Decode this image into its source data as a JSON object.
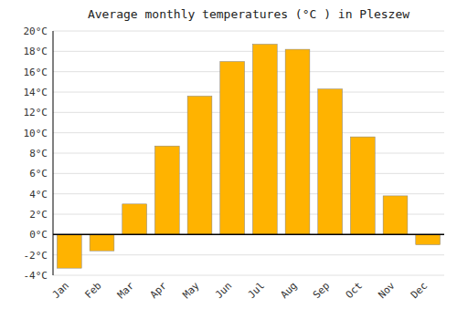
{
  "chart_data": {
    "type": "bar",
    "title": "Average monthly temperatures (°C ) in Pleszew",
    "categories": [
      "Jan",
      "Feb",
      "Mar",
      "Apr",
      "May",
      "Jun",
      "Jul",
      "Aug",
      "Sep",
      "Oct",
      "Nov",
      "Dec"
    ],
    "values": [
      -3.3,
      -1.6,
      3.0,
      8.7,
      13.6,
      17.0,
      18.7,
      18.2,
      14.3,
      9.6,
      3.8,
      -1.0
    ],
    "color": "#FFB300",
    "ylim": [
      -4,
      20
    ],
    "yticks": [
      {
        "value": -4,
        "label": "-4°C"
      },
      {
        "value": -2,
        "label": "-2°C"
      },
      {
        "value": 0,
        "label": "0°C"
      },
      {
        "value": 2,
        "label": "2°C"
      },
      {
        "value": 4,
        "label": "4°C"
      },
      {
        "value": 6,
        "label": "6°C"
      },
      {
        "value": 8,
        "label": "8°C"
      },
      {
        "value": 10,
        "label": "10°C"
      },
      {
        "value": 12,
        "label": "12°C"
      },
      {
        "value": 14,
        "label": "14°C"
      },
      {
        "value": 16,
        "label": "16°C"
      },
      {
        "value": 18,
        "label": "18°C"
      },
      {
        "value": 20,
        "label": "20°C"
      }
    ],
    "grid": true
  }
}
